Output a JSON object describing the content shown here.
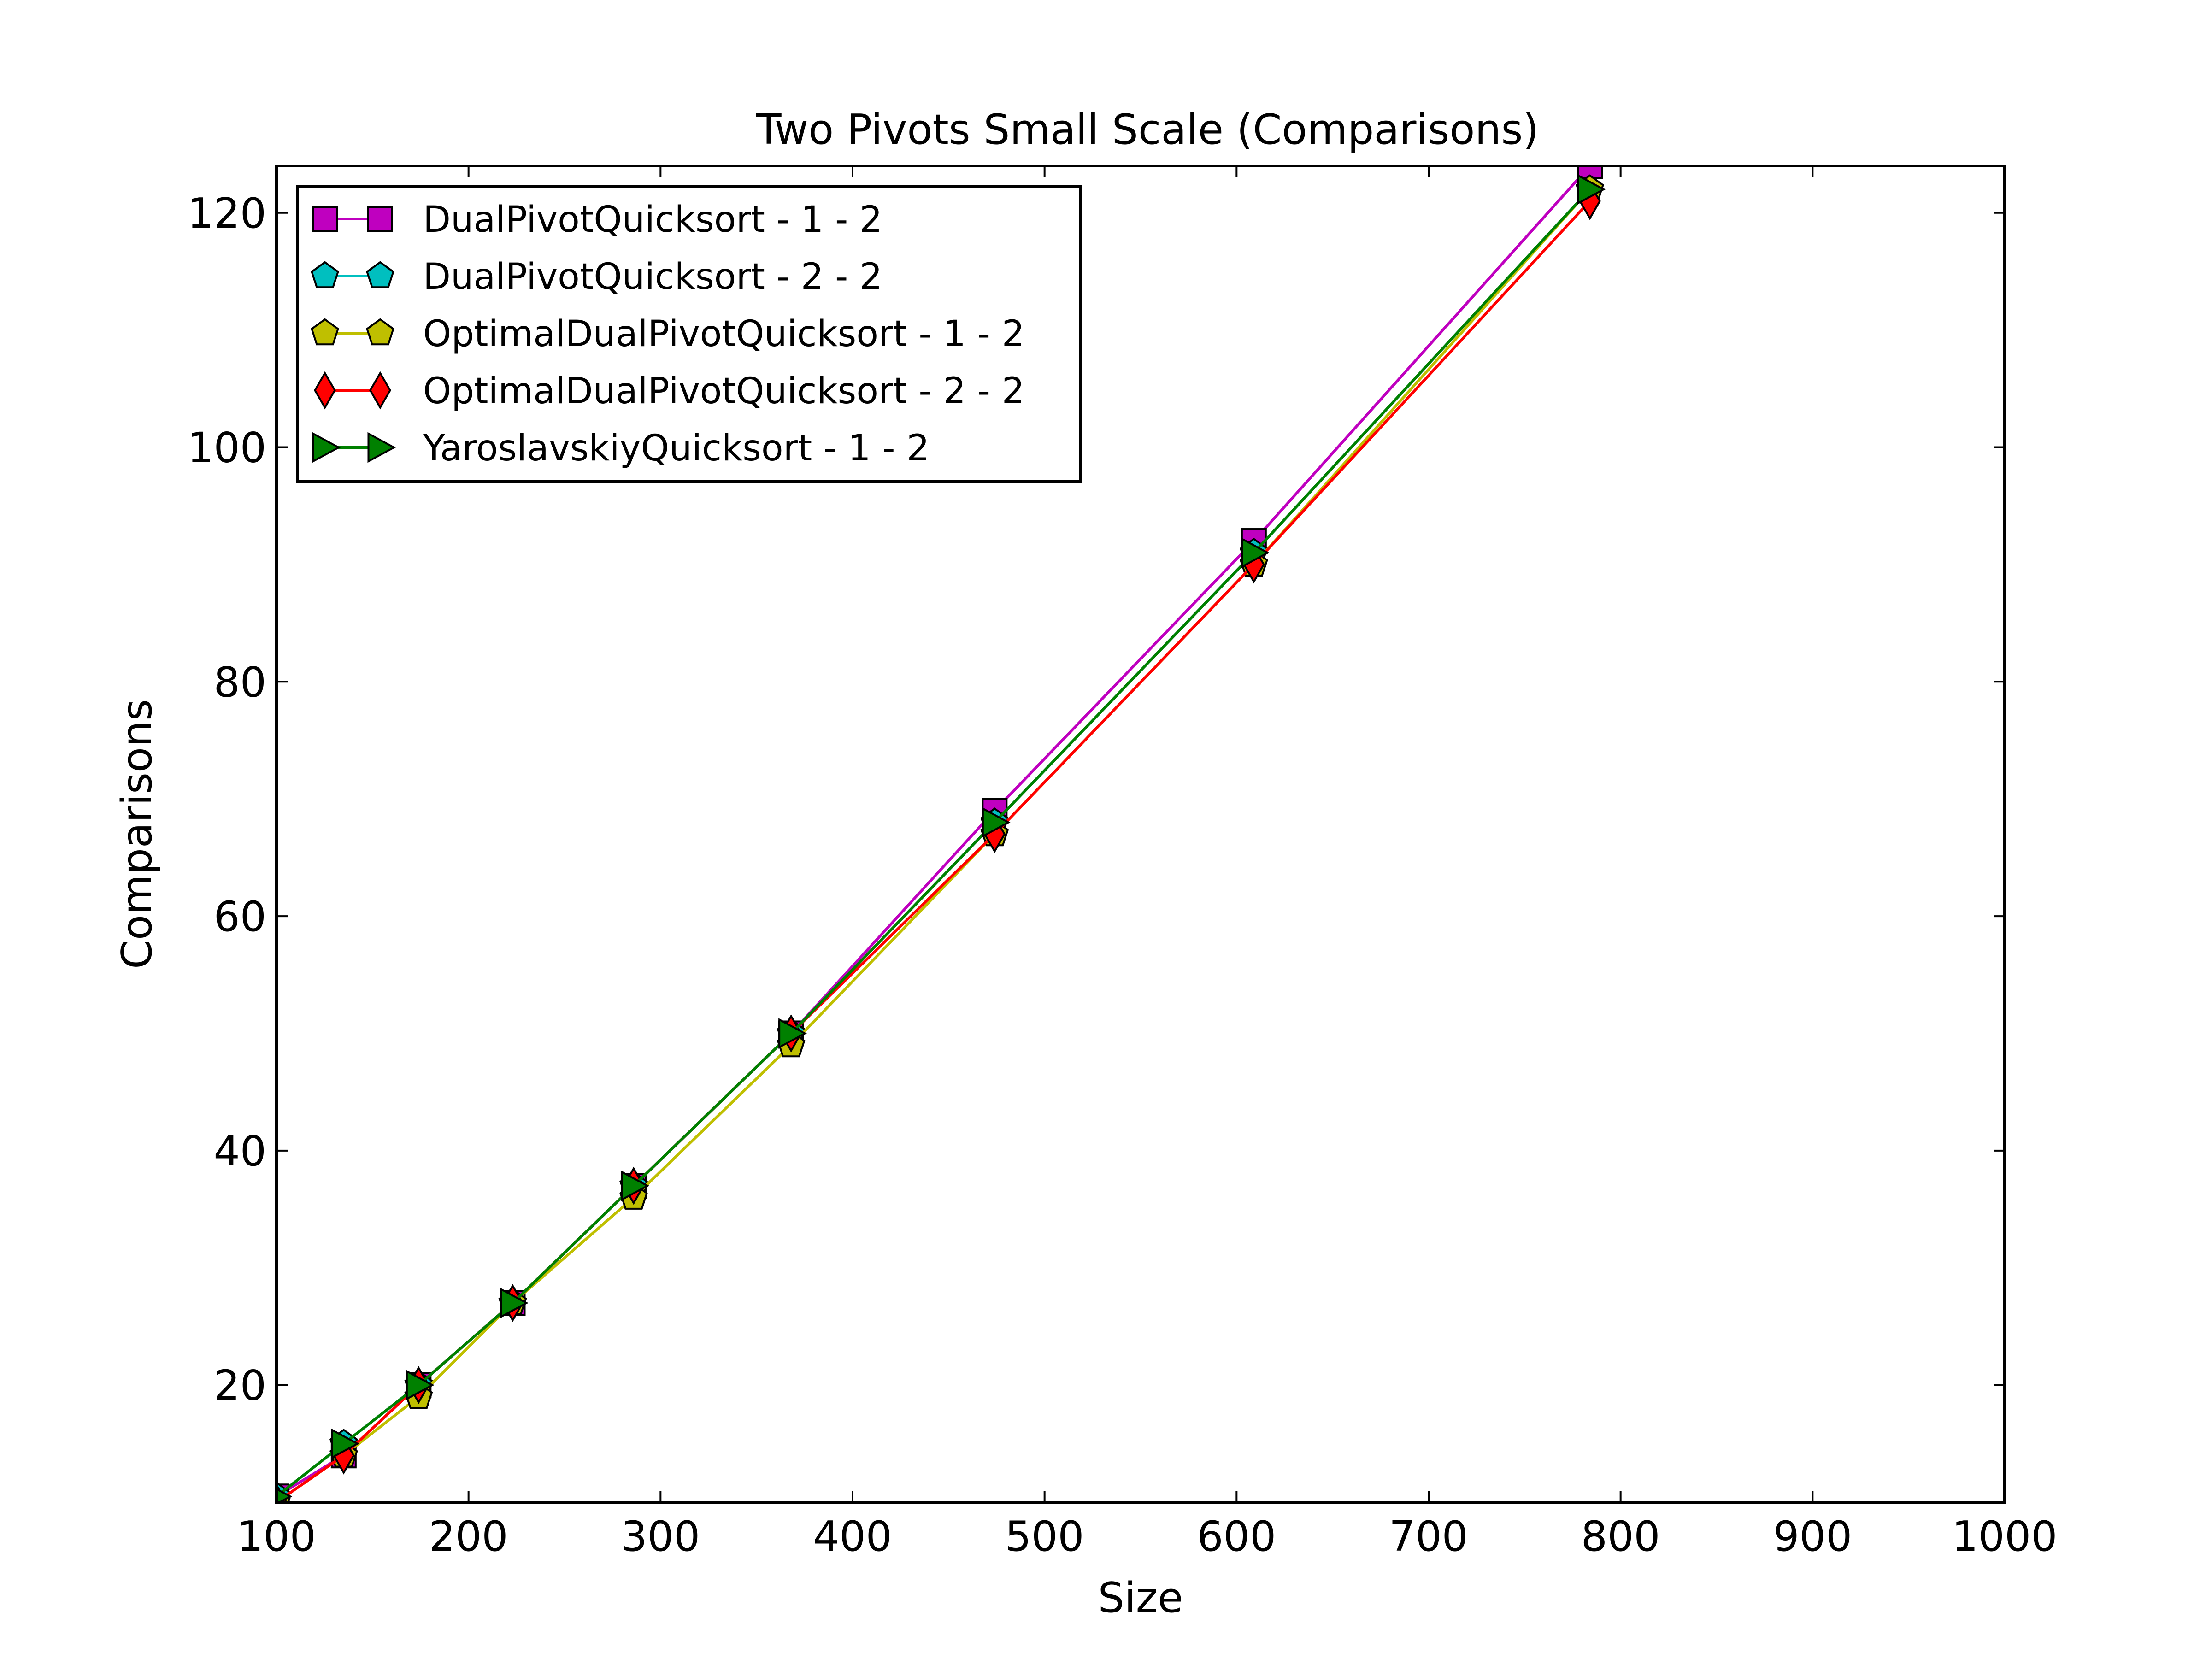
{
  "chart_data": {
    "type": "line",
    "title": "Two Pivots Small Scale (Comparisons)",
    "xlabel": "Size",
    "ylabel": "Comparisons",
    "xlim": [
      100,
      1000
    ],
    "ylim": [
      10,
      124
    ],
    "xticks": [
      "100",
      "200",
      "300",
      "400",
      "500",
      "600",
      "700",
      "800",
      "900",
      "1000"
    ],
    "yticks": [
      "20",
      "40",
      "60",
      "80",
      "100",
      "120"
    ],
    "xtick_values": [
      100,
      200,
      300,
      400,
      500,
      600,
      700,
      800,
      900,
      1000
    ],
    "ytick_values": [
      20,
      40,
      60,
      80,
      100,
      120
    ],
    "grid": false,
    "legend_position": "upper-left",
    "series": [
      {
        "name": "DualPivotQuicksort - 1 - 2",
        "color": "#bf00bf",
        "marker": "square",
        "x": [
          100,
          135,
          174,
          223,
          286,
          368,
          474,
          609,
          784
        ],
        "y": [
          10.5,
          14,
          20,
          27,
          37,
          50,
          69,
          92,
          124
        ]
      },
      {
        "name": "DualPivotQuicksort - 2 - 2",
        "color": "#00bfbf",
        "marker": "pentagon",
        "x": [
          100,
          135,
          174,
          223,
          286,
          368,
          474,
          609,
          784
        ],
        "y": [
          10.5,
          15,
          20,
          27,
          37,
          50,
          68,
          91,
          122
        ]
      },
      {
        "name": "OptimalDualPivotQuicksort - 1 - 2",
        "color": "#bfbf00",
        "marker": "pentagon",
        "x": [
          100,
          135,
          174,
          223,
          286,
          368,
          474,
          609,
          784
        ],
        "y": [
          10,
          14,
          19,
          27,
          36,
          49,
          67,
          90,
          122
        ]
      },
      {
        "name": "OptimalDualPivotQuicksort - 2 - 2",
        "color": "#ff0000",
        "marker": "diamond",
        "x": [
          100,
          135,
          174,
          223,
          286,
          368,
          474,
          609,
          784
        ],
        "y": [
          10,
          14,
          20,
          27,
          37,
          50,
          67,
          90,
          121
        ]
      },
      {
        "name": "YaroslavskiyQuicksort - 1 - 2",
        "color": "#008000",
        "marker": "triangle-right",
        "x": [
          100,
          135,
          174,
          223,
          286,
          368,
          474,
          609,
          784
        ],
        "y": [
          10.5,
          15,
          20,
          27,
          37,
          50,
          68,
          91,
          122
        ]
      }
    ]
  }
}
